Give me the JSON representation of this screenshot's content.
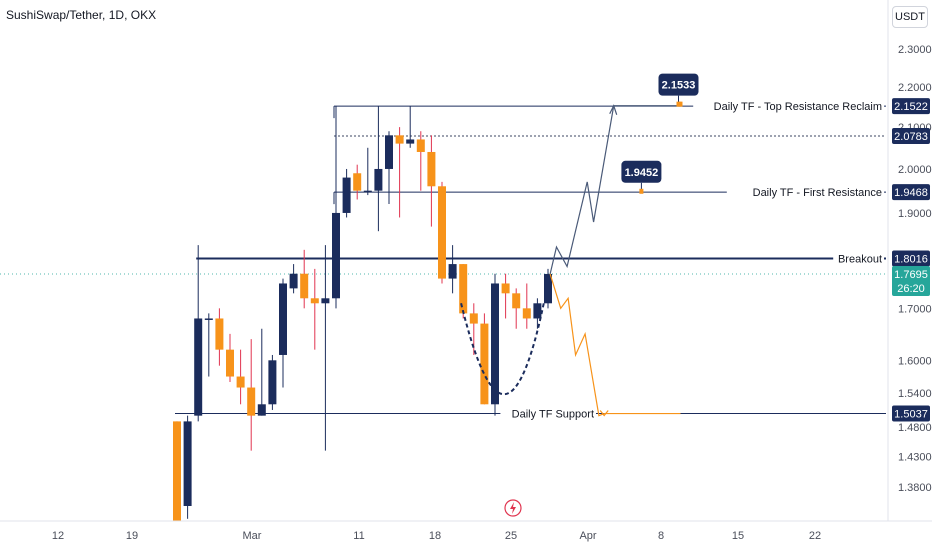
{
  "header": {
    "title": "SushiSwap/Tether, 1D, OKX",
    "currency": "USDT"
  },
  "countdown": "26:20",
  "colors": {
    "up": "#1b2c5c",
    "down": "#f7931a",
    "wick_up": "#1b2c5c",
    "wick_down": "#e0344f",
    "label_dark": "#1b2c5c",
    "label_last": "#26a69a",
    "grid_text": "#4a4e5a",
    "projection_up": "#4a5a78",
    "projection_down": "#f7931a"
  },
  "chart_data": {
    "type": "candlestick",
    "title": "SushiSwap/Tether, 1D, OKX",
    "y_scale": "log",
    "ylim": [
      1.35,
      2.33
    ],
    "y_ticks": [
      "2.3000",
      "2.2000",
      "2.1000",
      "2.0000",
      "1.9000",
      "1.7000",
      "1.6000",
      "1.5400",
      "1.4800",
      "1.4300",
      "1.3800"
    ],
    "x_ticks": [
      "12",
      "19",
      "Mar",
      "11",
      "18",
      "25",
      "Apr",
      "8",
      "15",
      "22"
    ],
    "candles": [
      {
        "o": 1.49,
        "h": 1.49,
        "l": 1.3,
        "c": 1.3
      },
      {
        "o": 1.35,
        "h": 1.5,
        "l": 1.33,
        "c": 1.49
      },
      {
        "o": 1.5,
        "h": 1.83,
        "l": 1.49,
        "c": 1.68
      },
      {
        "o": 1.68,
        "h": 1.69,
        "l": 1.57,
        "c": 1.68
      },
      {
        "o": 1.68,
        "h": 1.7,
        "l": 1.59,
        "c": 1.62
      },
      {
        "o": 1.62,
        "h": 1.65,
        "l": 1.56,
        "c": 1.57
      },
      {
        "o": 1.57,
        "h": 1.62,
        "l": 1.52,
        "c": 1.55
      },
      {
        "o": 1.55,
        "h": 1.64,
        "l": 1.44,
        "c": 1.5
      },
      {
        "o": 1.5,
        "h": 1.66,
        "l": 1.5,
        "c": 1.52
      },
      {
        "o": 1.52,
        "h": 1.61,
        "l": 1.51,
        "c": 1.6
      },
      {
        "o": 1.61,
        "h": 1.76,
        "l": 1.55,
        "c": 1.75
      },
      {
        "o": 1.74,
        "h": 1.79,
        "l": 1.73,
        "c": 1.77
      },
      {
        "o": 1.77,
        "h": 1.82,
        "l": 1.7,
        "c": 1.72
      },
      {
        "o": 1.72,
        "h": 1.78,
        "l": 1.62,
        "c": 1.71
      },
      {
        "o": 1.71,
        "h": 1.83,
        "l": 1.44,
        "c": 1.72
      },
      {
        "o": 1.72,
        "h": 2.152,
        "l": 1.7,
        "c": 1.9
      },
      {
        "o": 1.9,
        "h": 2.0,
        "l": 1.89,
        "c": 1.98
      },
      {
        "o": 1.99,
        "h": 2.01,
        "l": 1.93,
        "c": 1.95
      },
      {
        "o": 1.95,
        "h": 2.05,
        "l": 1.94,
        "c": 1.95
      },
      {
        "o": 1.95,
        "h": 2.152,
        "l": 1.86,
        "c": 2.0
      },
      {
        "o": 2.0,
        "h": 2.09,
        "l": 1.92,
        "c": 2.08
      },
      {
        "o": 2.08,
        "h": 2.1,
        "l": 1.89,
        "c": 2.06
      },
      {
        "o": 2.06,
        "h": 2.152,
        "l": 2.05,
        "c": 2.07
      },
      {
        "o": 2.07,
        "h": 2.09,
        "l": 1.95,
        "c": 2.04
      },
      {
        "o": 2.04,
        "h": 2.08,
        "l": 1.87,
        "c": 1.96
      },
      {
        "o": 1.96,
        "h": 1.97,
        "l": 1.75,
        "c": 1.76
      },
      {
        "o": 1.76,
        "h": 1.83,
        "l": 1.73,
        "c": 1.79
      },
      {
        "o": 1.79,
        "h": 1.79,
        "l": 1.68,
        "c": 1.69
      },
      {
        "o": 1.69,
        "h": 1.71,
        "l": 1.61,
        "c": 1.67
      },
      {
        "o": 1.67,
        "h": 1.69,
        "l": 1.52,
        "c": 1.52
      },
      {
        "o": 1.52,
        "h": 1.77,
        "l": 1.5,
        "c": 1.75
      },
      {
        "o": 1.75,
        "h": 1.77,
        "l": 1.68,
        "c": 1.73
      },
      {
        "o": 1.73,
        "h": 1.74,
        "l": 1.66,
        "c": 1.7
      },
      {
        "o": 1.7,
        "h": 1.75,
        "l": 1.66,
        "c": 1.68
      },
      {
        "o": 1.68,
        "h": 1.72,
        "l": 1.66,
        "c": 1.71
      },
      {
        "o": 1.71,
        "h": 1.78,
        "l": 1.7,
        "c": 1.7695
      }
    ],
    "levels": [
      {
        "value": 2.1522,
        "label": "Daily TF - Top Resistance Reclaim",
        "style": "solid",
        "start_index": 15,
        "box": "2.1522"
      },
      {
        "value": 2.0783,
        "label": "",
        "style": "dotted",
        "start_index": 15,
        "box": "2.0783"
      },
      {
        "value": 1.9468,
        "label": "Daily TF - First Resistance",
        "style": "solid",
        "start_index": 15,
        "box": "1.9468"
      },
      {
        "value": 1.8016,
        "label": "Breakout",
        "style": "thick",
        "start_index": 2,
        "box": "1.8016"
      },
      {
        "value": 1.5037,
        "label": "Daily TF Support",
        "style": "solid",
        "start_index": 0,
        "box": "1.5037"
      }
    ],
    "last_price": {
      "value": 1.7695,
      "label": "1.7695"
    },
    "callouts": [
      {
        "value": 2.1533,
        "label": "2.1533",
        "index": 47.5
      },
      {
        "value": 1.9452,
        "label": "1.9452",
        "index": 44
      }
    ],
    "projection_up": [
      [
        35.2,
        1.7695
      ],
      [
        35.8,
        1.826
      ],
      [
        36.8,
        1.785
      ],
      [
        38.7,
        1.97
      ],
      [
        39.3,
        1.88
      ],
      [
        41.2,
        2.153
      ],
      [
        47.5,
        2.153
      ]
    ],
    "projection_down": [
      [
        35.2,
        1.7695
      ],
      [
        36.2,
        1.7
      ],
      [
        36.9,
        1.72
      ],
      [
        37.6,
        1.61
      ],
      [
        38.5,
        1.65
      ],
      [
        39.8,
        1.5
      ],
      [
        40.3,
        1.5037
      ],
      [
        47.5,
        1.5037
      ]
    ],
    "projection_up_end_marker": {
      "index": 47.5,
      "value": 2.1533
    },
    "projection_down_end_marker": {
      "index": 40.3,
      "value": 1.5037
    },
    "cup_curve": [
      [
        26.8,
        1.71
      ],
      [
        31,
        1.48
      ],
      [
        34.6,
        1.71
      ]
    ]
  }
}
